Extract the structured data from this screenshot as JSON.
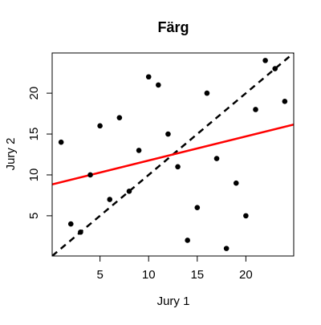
{
  "chart_data": {
    "type": "scatter",
    "title": "Färg",
    "x_label": "Jury 1",
    "y_label": "Jury 2",
    "x": [
      1,
      2,
      3,
      4,
      5,
      6,
      7,
      8,
      9,
      10,
      11,
      12,
      13,
      14,
      15,
      16,
      17,
      18,
      19,
      20,
      21,
      22,
      23,
      24
    ],
    "series": [
      {
        "name": "Jury 2",
        "color": "#000000",
        "values": [
          14,
          4,
          3,
          10,
          16,
          7,
          17,
          8,
          13,
          22,
          21,
          15,
          11,
          2,
          6,
          20,
          12,
          1,
          9,
          5,
          18,
          24,
          23,
          19
        ]
      }
    ],
    "xlim": [
      0.08,
      24.92
    ],
    "ylim": [
      0.08,
      24.92
    ],
    "xticks": [
      5,
      10,
      15,
      20
    ],
    "yticks": [
      5,
      10,
      15,
      20
    ],
    "regression_color": "#ff0000",
    "identity_line": true
  }
}
